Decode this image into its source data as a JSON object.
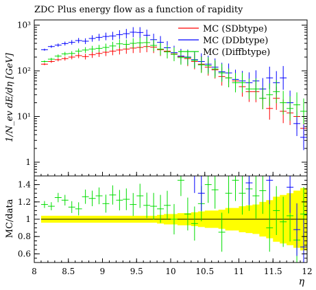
{
  "chart_data": {
    "type": "scatter",
    "title": "ZDC Plus energy flow as a function of rapidity",
    "xlabel": "η",
    "ylabel_main": "1/N_ev dE/dη [GeV]",
    "ylabel_ratio": "MC/data",
    "xlim": [
      8,
      12
    ],
    "ylim_main": [
      0.5,
      1300
    ],
    "yscale_main": "log",
    "ylim_ratio": [
      0.5,
      1.5
    ],
    "legend_position": "top-right",
    "x_ticks": [
      "8",
      "8.5",
      "9",
      "9.5",
      "10",
      "10.5",
      "11",
      "11.5",
      "12"
    ],
    "main_y_ticks": [
      {
        "value": 1000,
        "label": "10³"
      },
      {
        "value": 100,
        "label": "10²"
      },
      {
        "value": 10,
        "label": "10¹"
      },
      {
        "value": 1,
        "label": "1"
      }
    ],
    "ratio_y_ticks": [
      "0.6",
      "0.8",
      "1",
      "1.2",
      "1.4"
    ],
    "x": [
      8.15,
      8.25,
      8.35,
      8.45,
      8.55,
      8.65,
      8.75,
      8.85,
      8.95,
      9.05,
      9.15,
      9.25,
      9.35,
      9.45,
      9.55,
      9.65,
      9.75,
      9.85,
      9.95,
      10.05,
      10.15,
      10.25,
      10.35,
      10.45,
      10.55,
      10.65,
      10.75,
      10.85,
      10.95,
      11.05,
      11.15,
      11.25,
      11.35,
      11.45,
      11.55,
      11.65,
      11.75,
      11.85,
      11.95
    ],
    "series": [
      {
        "name": "MC (SDbtype)",
        "color": "#ff0000",
        "values": [
          140,
          160,
          175,
          185,
          200,
          215,
          205,
          225,
          240,
          255,
          270,
          285,
          300,
          315,
          325,
          340,
          330,
          290,
          270,
          235,
          205,
          185,
          160,
          140,
          120,
          105,
          75,
          70,
          60,
          45,
          35,
          35,
          25,
          15,
          25,
          13,
          12,
          10,
          5.5
        ]
      },
      {
        "name": "MC (DDbtype)",
        "color": "#0000ff",
        "values": [
          290,
          340,
          365,
          395,
          420,
          460,
          445,
          510,
          540,
          565,
          580,
          620,
          650,
          700,
          690,
          600,
          480,
          420,
          320,
          250,
          210,
          200,
          175,
          160,
          140,
          120,
          95,
          90,
          65,
          60,
          55,
          60,
          40,
          70,
          55,
          70,
          20,
          7,
          3.5
        ]
      },
      {
        "name": "MC (Diffbtype)",
        "color": "#00dd00",
        "values": [
          160,
          180,
          210,
          235,
          240,
          270,
          285,
          300,
          310,
          325,
          350,
          390,
          380,
          400,
          410,
          415,
          360,
          300,
          260,
          230,
          195,
          195,
          170,
          135,
          130,
          110,
          90,
          70,
          55,
          55,
          40,
          40,
          25,
          30,
          35,
          20,
          15,
          18,
          13
        ]
      }
    ],
    "ratio_series": [
      {
        "name": "MC (Diffbtype)",
        "color": "#00dd00",
        "values": [
          1.17,
          1.15,
          1.25,
          1.22,
          1.14,
          1.12,
          1.26,
          1.24,
          1.27,
          1.18,
          1.28,
          1.22,
          1.23,
          1.17,
          1.27,
          1.16,
          1.15,
          1.12,
          1.16,
          1.0,
          1.45,
          1.06,
          0.95,
          1.18,
          1.4,
          1.34,
          0.85,
          1.3,
          1.45,
          1.3,
          1.35,
          1.27,
          1.33,
          0.9,
          1.1,
          0.97,
          1.04,
          0.76,
          1.06
        ]
      },
      {
        "name": "MC (DDbtype)",
        "color": "#0000ff",
        "values": [
          null,
          null,
          null,
          null,
          null,
          null,
          null,
          null,
          null,
          null,
          null,
          null,
          null,
          null,
          null,
          null,
          null,
          null,
          null,
          null,
          null,
          null,
          1.5,
          1.3,
          null,
          null,
          null,
          null,
          null,
          null,
          1.42,
          null,
          null,
          1.45,
          null,
          null,
          1.37,
          0.88,
          0.68
        ]
      }
    ],
    "data_uncertainty_band": [
      0.04,
      0.04,
      0.04,
      0.04,
      0.04,
      0.04,
      0.04,
      0.04,
      0.04,
      0.04,
      0.04,
      0.04,
      0.04,
      0.04,
      0.04,
      0.04,
      0.04,
      0.05,
      0.06,
      0.06,
      0.07,
      0.07,
      0.08,
      0.09,
      0.1,
      0.1,
      0.11,
      0.13,
      0.13,
      0.15,
      0.16,
      0.17,
      0.2,
      0.22,
      0.26,
      0.28,
      0.3,
      0.33,
      0.36
    ]
  }
}
